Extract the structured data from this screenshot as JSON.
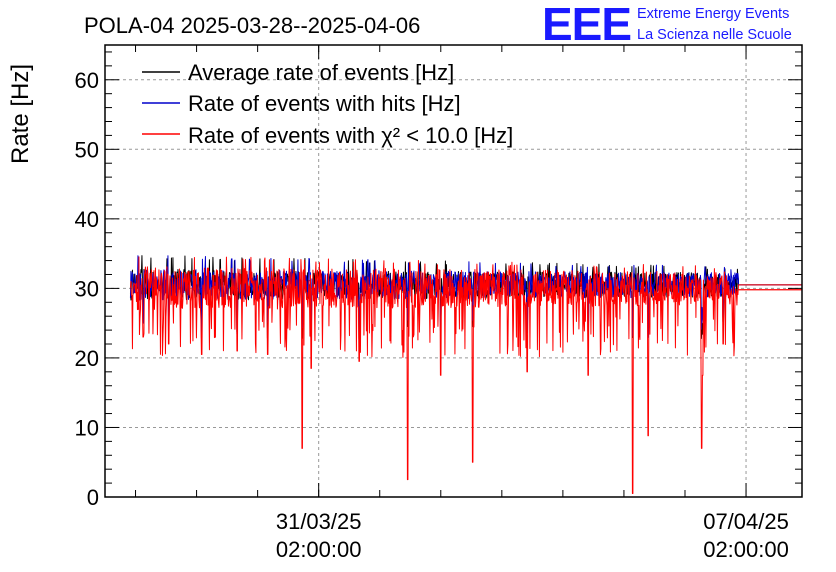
{
  "header": {
    "title": "POLA-04 2025-03-28--2025-04-06",
    "logo": "EEE",
    "logo_line1": "Extreme Energy Events",
    "logo_line2": "La Scienza nelle Scuole"
  },
  "colors": {
    "average": "#000000",
    "hits": "#0000cc",
    "chi2": "#ff0000",
    "logo": "#1a1aff",
    "grid": "#999999"
  },
  "chart_data": {
    "type": "line",
    "title": "POLA-04 2025-03-28--2025-04-06",
    "ylabel": "Rate [Hz]",
    "xlabel": "",
    "ylim": [
      0,
      65
    ],
    "yticks": [
      0,
      10,
      20,
      30,
      40,
      50,
      60
    ],
    "xlim": [
      "2025-03-27T14:00:00",
      "2025-04-08T00:00:00"
    ],
    "xticks": [
      {
        "time": "2025-03-31T02:00:00",
        "label_date": "31/03/25",
        "label_time": "02:00:00"
      },
      {
        "time": "2025-04-07T02:00:00",
        "label_date": "07/04/25",
        "label_time": "02:00:00"
      }
    ],
    "grid": true,
    "legend_position": "top-left",
    "data_range": [
      "2025-03-28T00:00:00",
      "2025-04-06T23:00:00"
    ],
    "tail": {
      "start": "2025-04-06T23:00:00",
      "end": "2025-04-08T00:00:00",
      "values": [
        30.5,
        29.8
      ]
    },
    "series": [
      {
        "name": "Average rate of events [Hz]",
        "baseline": 30.5,
        "typical_range": [
          28,
          33
        ]
      },
      {
        "name": "Rate of events with hits [Hz]",
        "baseline": 30.5,
        "typical_range": [
          28,
          33
        ]
      },
      {
        "name": "Rate of events with χ² < 10.0 [Hz]",
        "baseline": 30.0,
        "typical_range": [
          26,
          33
        ]
      }
    ],
    "notable_dips": [
      {
        "time": "2025-03-28T00:30:00",
        "value": 29.0
      },
      {
        "time": "2025-03-28T05:00:00",
        "value": 23.0
      },
      {
        "time": "2025-03-28T15:00:00",
        "value": 22.0
      },
      {
        "time": "2025-03-29T04:00:00",
        "value": 20.5
      },
      {
        "time": "2025-03-29T18:00:00",
        "value": 21.0
      },
      {
        "time": "2025-03-30T06:00:00",
        "value": 20.5
      },
      {
        "time": "2025-03-30T19:30:00",
        "value": 7.0
      },
      {
        "time": "2025-03-30T23:00:00",
        "value": 18.5
      },
      {
        "time": "2025-03-31T18:00:00",
        "value": 19.5
      },
      {
        "time": "2025-04-01T13:00:00",
        "value": 2.5
      },
      {
        "time": "2025-04-02T02:00:00",
        "value": 17.5
      },
      {
        "time": "2025-04-02T14:30:00",
        "value": 5.0
      },
      {
        "time": "2025-04-03T12:00:00",
        "value": 18.0
      },
      {
        "time": "2025-04-04T12:00:00",
        "value": 17.5
      },
      {
        "time": "2025-04-05T05:30:00",
        "value": 0.5
      },
      {
        "time": "2025-04-05T11:30:00",
        "value": 8.8
      },
      {
        "time": "2025-04-06T08:30:00",
        "value": 7.0
      },
      {
        "time": "2025-04-06T09:00:00",
        "value": 17.5
      },
      {
        "time": "2025-04-06T17:00:00",
        "value": 22.0
      }
    ]
  }
}
